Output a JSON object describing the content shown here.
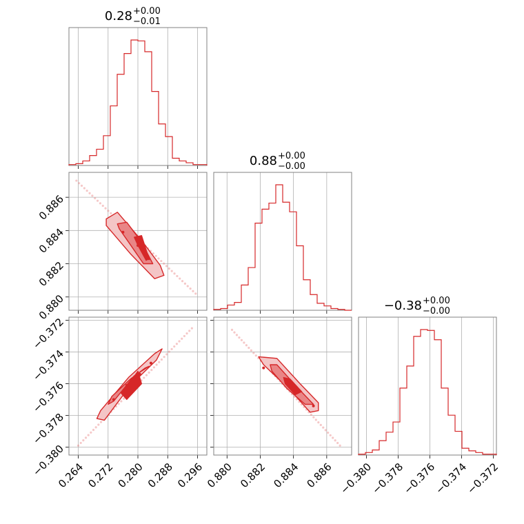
{
  "colors": {
    "line": "#d62728",
    "fill_outer": "#f4c5c6",
    "fill_inner": "#e98586",
    "grid": "#b0b0b0",
    "frame": "#808080"
  },
  "chart_data": {
    "type": "corner",
    "parameters": [
      {
        "range": [
          0.2615,
          0.2985
        ],
        "ticks": [
          0.264,
          0.272,
          0.28,
          0.288,
          0.296
        ],
        "tick_labels": [
          "0.264",
          "0.272",
          "0.280",
          "0.288",
          "0.296"
        ],
        "title": {
          "value": "0.28",
          "plus": "+0.00",
          "minus": "−0.01"
        },
        "histogram": {
          "bins": 20,
          "counts": [
            1,
            2,
            5,
            11,
            18,
            33,
            66,
            101,
            124,
            139,
            138,
            126,
            82,
            46,
            32,
            8,
            5,
            3,
            1,
            1
          ]
        }
      },
      {
        "range": [
          0.8792,
          0.8875
        ],
        "ticks": [
          0.88,
          0.882,
          0.884,
          0.886
        ],
        "tick_labels": [
          "0.880",
          "0.882",
          "0.884",
          "0.886"
        ],
        "title": {
          "value": "0.88",
          "plus": "+0.00",
          "minus": "−0.00"
        },
        "histogram": {
          "bins": 20,
          "counts": [
            1,
            2,
            6,
            9,
            29,
            49,
            100,
            116,
            123,
            144,
            124,
            113,
            74,
            35,
            18,
            8,
            5,
            2,
            1,
            0
          ]
        }
      },
      {
        "range": [
          -0.3805,
          -0.3718
        ],
        "ticks": [
          -0.38,
          -0.378,
          -0.376,
          -0.374,
          -0.372
        ],
        "tick_labels": [
          "−0.380",
          "−0.378",
          "−0.376",
          "−0.374",
          "−0.372"
        ],
        "title": {
          "value": "−0.38",
          "plus": "+0.00",
          "minus": "−0.00"
        },
        "histogram": {
          "bins": 20,
          "counts": [
            1,
            3,
            6,
            17,
            27,
            39,
            79,
            105,
            140,
            148,
            147,
            136,
            79,
            47,
            28,
            8,
            5,
            3,
            1,
            1
          ]
        }
      }
    ],
    "pairs": [
      {
        "x_param": 0,
        "y_param": 1,
        "samples_from": [
          0.2635,
          0.887
        ],
        "samples_to": [
          0.2955,
          0.8802
        ],
        "contour_outer": [
          [
            0.2715,
            0.8847
          ],
          [
            0.2745,
            0.8851
          ],
          [
            0.281,
            0.8834
          ],
          [
            0.286,
            0.8819
          ],
          [
            0.287,
            0.8813
          ],
          [
            0.2845,
            0.8811
          ],
          [
            0.278,
            0.8826
          ],
          [
            0.2715,
            0.8843
          ]
        ],
        "contour_inner": [
          [
            0.2745,
            0.8844
          ],
          [
            0.277,
            0.8845
          ],
          [
            0.281,
            0.8833
          ],
          [
            0.284,
            0.882
          ],
          [
            0.2815,
            0.882
          ],
          [
            0.2775,
            0.8833
          ],
          [
            0.275,
            0.8841
          ]
        ],
        "contour_core": [
          [
            0.279,
            0.8836
          ],
          [
            0.281,
            0.8837
          ],
          [
            0.283,
            0.8823
          ],
          [
            0.2822,
            0.8822
          ],
          [
            0.28,
            0.8831
          ]
        ],
        "points": [
          [
            0.276,
            0.8839
          ],
          [
            0.28,
            0.8831
          ],
          [
            0.283,
            0.8823
          ]
        ]
      },
      {
        "x_param": 0,
        "y_param": 2,
        "samples_from": [
          0.264,
          -0.3799
        ],
        "samples_to": [
          0.2945,
          -0.3725
        ],
        "contour_outer": [
          [
            0.269,
            -0.3782
          ],
          [
            0.271,
            -0.3783
          ],
          [
            0.278,
            -0.3761
          ],
          [
            0.285,
            -0.3745
          ],
          [
            0.2865,
            -0.3738
          ],
          [
            0.2845,
            -0.3741
          ],
          [
            0.2775,
            -0.3756
          ],
          [
            0.27,
            -0.3777
          ]
        ],
        "contour_inner": [
          [
            0.272,
            -0.3773
          ],
          [
            0.2735,
            -0.3771
          ],
          [
            0.279,
            -0.3755
          ],
          [
            0.283,
            -0.3749
          ],
          [
            0.282,
            -0.375
          ],
          [
            0.278,
            -0.3757
          ],
          [
            0.273,
            -0.3768
          ]
        ],
        "contour_core": [
          [
            0.2755,
            -0.3766
          ],
          [
            0.277,
            -0.377
          ],
          [
            0.281,
            -0.376
          ],
          [
            0.28,
            -0.3752
          ],
          [
            0.2785,
            -0.3757
          ]
        ],
        "points": [
          [
            0.2735,
            -0.377
          ],
          [
            0.277,
            -0.3761
          ],
          [
            0.2805,
            -0.3754
          ],
          [
            0.2835,
            -0.3747
          ]
        ]
      },
      {
        "x_param": 1,
        "y_param": 2,
        "samples_from": [
          0.8803,
          -0.3726
        ],
        "samples_to": [
          0.8868,
          -0.3799
        ],
        "contour_outer": [
          [
            0.8819,
            -0.3743
          ],
          [
            0.883,
            -0.3744
          ],
          [
            0.8844,
            -0.376
          ],
          [
            0.8855,
            -0.3772
          ],
          [
            0.8855,
            -0.3777
          ],
          [
            0.885,
            -0.3778
          ],
          [
            0.8838,
            -0.3764
          ],
          [
            0.8822,
            -0.3748
          ]
        ],
        "contour_inner": [
          [
            0.8826,
            -0.3748
          ],
          [
            0.883,
            -0.3748
          ],
          [
            0.8842,
            -0.3762
          ],
          [
            0.8852,
            -0.3773
          ],
          [
            0.8847,
            -0.3773
          ],
          [
            0.8836,
            -0.3763
          ],
          [
            0.8827,
            -0.3752
          ]
        ],
        "contour_core": [
          [
            0.8834,
            -0.3756
          ],
          [
            0.8838,
            -0.3757
          ],
          [
            0.8845,
            -0.3765
          ],
          [
            0.8841,
            -0.3767
          ],
          [
            0.8835,
            -0.376
          ]
        ],
        "points": [
          [
            0.8822,
            -0.375
          ],
          [
            0.884,
            -0.3761
          ],
          [
            0.8852,
            -0.3774
          ]
        ]
      }
    ]
  }
}
